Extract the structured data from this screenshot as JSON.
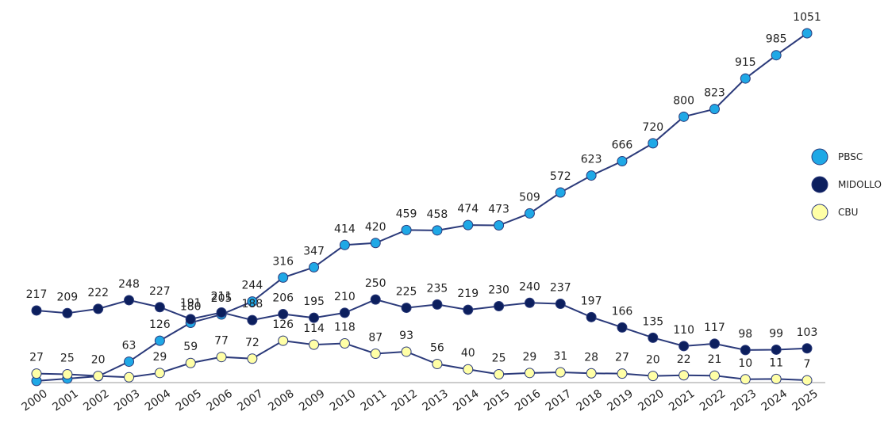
{
  "chart_data": {
    "type": "line",
    "x": [
      "2000",
      "2001",
      "2002",
      "2003",
      "2004",
      "2005",
      "2006",
      "2007",
      "2008",
      "2009",
      "2010",
      "2011",
      "2012",
      "2013",
      "2014",
      "2015",
      "2016",
      "2017",
      "2018",
      "2019",
      "2020",
      "2021",
      "2022",
      "2023",
      "2024",
      "2025"
    ],
    "line_color": "#2b3a7a",
    "series": [
      {
        "name": "PBSC",
        "color": "#1fa8e6",
        "values": [
          5,
          12,
          19,
          63,
          126,
          180,
          205,
          244,
          316,
          347,
          414,
          420,
          459,
          458,
          474,
          473,
          509,
          572,
          623,
          666,
          720,
          800,
          823,
          915,
          985,
          1051
        ],
        "value_labels": [
          null,
          null,
          null,
          "63",
          "126",
          "180",
          "205",
          "244",
          "316",
          "347",
          "414",
          "420",
          "459",
          "458",
          "474",
          "473",
          "509",
          "572",
          "623",
          "666",
          "720",
          "800",
          "823",
          "915",
          "985",
          "1051"
        ]
      },
      {
        "name": "MIDOLLO",
        "color": "#0c1f5e",
        "values": [
          217,
          209,
          222,
          248,
          227,
          191,
          211,
          188,
          206,
          195,
          210,
          250,
          225,
          235,
          219,
          230,
          240,
          237,
          197,
          166,
          135,
          110,
          117,
          98,
          99,
          103
        ],
        "value_labels": [
          "217",
          "209",
          "222",
          "248",
          "227",
          "191",
          "211",
          "188",
          "206",
          "195",
          "210",
          "250",
          "225",
          "235",
          "219",
          "230",
          "240",
          "237",
          "197",
          "166",
          "135",
          "110",
          "117",
          "98",
          "99",
          "103"
        ]
      },
      {
        "name": "CBU",
        "color": "#ffffa6",
        "values": [
          27,
          25,
          20,
          16,
          29,
          59,
          77,
          72,
          126,
          114,
          118,
          87,
          93,
          56,
          40,
          25,
          29,
          31,
          28,
          27,
          20,
          22,
          21,
          10,
          11,
          7
        ],
        "value_labels": [
          "27",
          "25",
          "20",
          null,
          "29",
          "59",
          "77",
          "72",
          "126",
          "114",
          "118",
          "87",
          "93",
          "56",
          "40",
          "25",
          "29",
          "31",
          "28",
          "27",
          "20",
          "22",
          "21",
          "10",
          "11",
          "7"
        ]
      }
    ],
    "legend": "right"
  }
}
